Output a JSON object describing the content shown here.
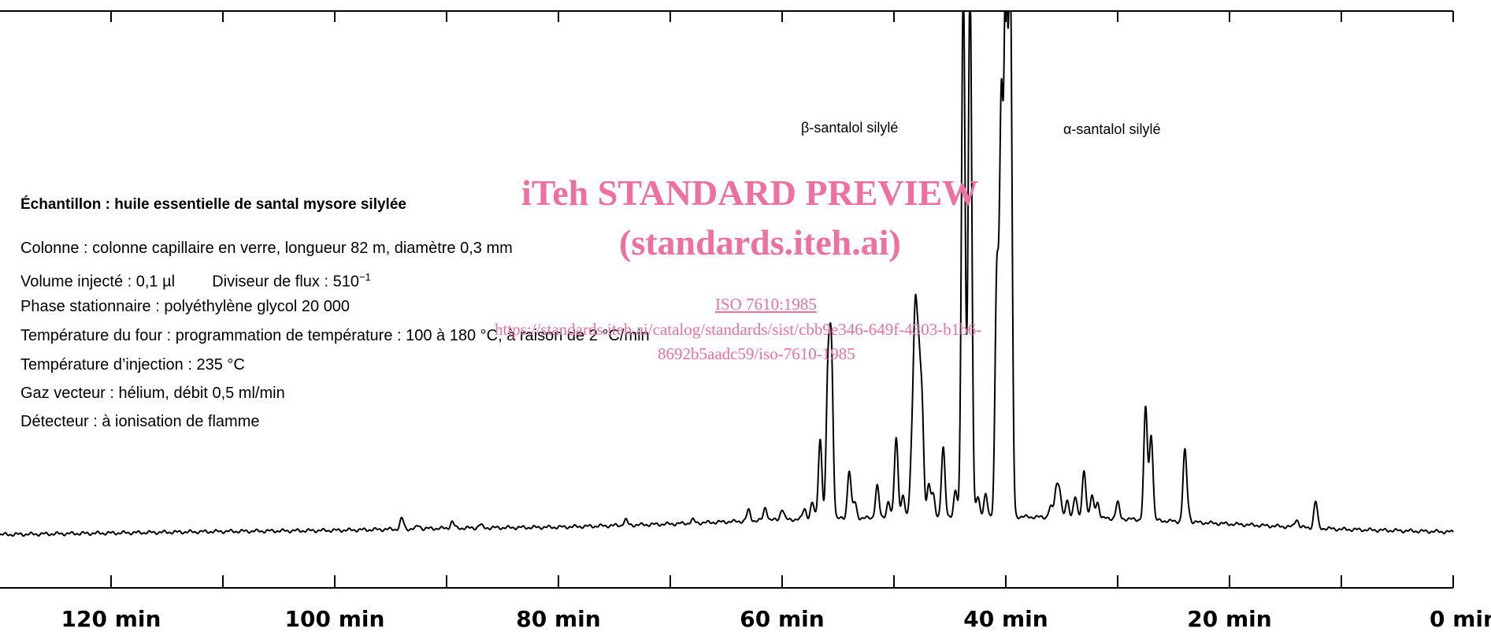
{
  "chart_data": {
    "type": "line",
    "x_axis": {
      "unit": "min",
      "reversed": true,
      "range": [
        0,
        130
      ],
      "tick_labels": [
        "120 min",
        "100 min",
        "80 min",
        "60 min",
        "40 min",
        "20 min",
        "0 min"
      ],
      "tick_values": [
        120,
        100,
        80,
        60,
        40,
        20,
        0
      ],
      "minor_ticks_every": 10
    },
    "series": [
      {
        "baseline": [
          [
            130,
            0.02
          ],
          [
            120,
            0.023
          ],
          [
            110,
            0.026
          ],
          [
            100,
            0.028
          ],
          [
            90,
            0.032
          ],
          [
            80,
            0.034
          ],
          [
            70,
            0.04
          ],
          [
            60,
            0.048
          ],
          [
            50,
            0.052
          ],
          [
            40,
            0.054
          ],
          [
            30,
            0.05
          ],
          [
            20,
            0.04
          ],
          [
            10,
            0.03
          ],
          [
            0,
            0.025
          ]
        ],
        "peaks": [
          [
            94.0,
            0.02
          ],
          [
            92.5,
            0.006
          ],
          [
            89.5,
            0.012
          ],
          [
            87.0,
            0.006
          ],
          [
            74.0,
            0.01
          ],
          [
            68.0,
            0.006
          ],
          [
            63.0,
            0.02
          ],
          [
            61.5,
            0.024
          ],
          [
            60.0,
            0.02
          ],
          [
            58.0,
            0.02
          ],
          [
            57.3,
            0.03
          ],
          [
            56.6,
            0.15
          ],
          [
            55.9,
            0.26
          ],
          [
            55.6,
            0.3
          ],
          [
            54.0,
            0.09
          ],
          [
            53.5,
            0.03
          ],
          [
            51.5,
            0.06
          ],
          [
            50.5,
            0.03
          ],
          [
            49.8,
            0.15
          ],
          [
            49.2,
            0.04
          ],
          [
            48.4,
            0.12
          ],
          [
            48.1,
            0.35
          ],
          [
            47.8,
            0.25
          ],
          [
            47.5,
            0.2
          ],
          [
            46.9,
            0.06
          ],
          [
            46.5,
            0.04
          ],
          [
            45.6,
            0.13
          ],
          [
            44.5,
            0.05
          ],
          [
            43.8,
            1.0
          ],
          [
            43.2,
            1.0
          ],
          [
            42.5,
            0.04
          ],
          [
            41.8,
            0.04
          ],
          [
            40.8,
            0.45
          ],
          [
            40.4,
            0.75
          ],
          [
            40.0,
            1.0
          ],
          [
            39.6,
            1.0
          ],
          [
            36.0,
            0.02
          ],
          [
            35.5,
            0.05
          ],
          [
            35.2,
            0.05
          ],
          [
            34.5,
            0.03
          ],
          [
            33.8,
            0.04
          ],
          [
            33.0,
            0.09
          ],
          [
            32.3,
            0.04
          ],
          [
            31.8,
            0.03
          ],
          [
            30.0,
            0.03
          ],
          [
            27.5,
            0.21
          ],
          [
            27.0,
            0.16
          ],
          [
            24.0,
            0.13
          ],
          [
            23.7,
            0.02
          ],
          [
            14.0,
            0.015
          ],
          [
            12.3,
            0.05
          ]
        ]
      }
    ],
    "annotations": [
      "β-santalol silylé",
      "α-santalol silylé"
    ],
    "grid": false,
    "title": "",
    "xlabel": "",
    "ylabel": ""
  },
  "peak_labels": {
    "beta": "β-santalol silylé",
    "alpha": "α-santalol silylé"
  },
  "conditions": {
    "sample": "Échantillon : huile essentielle de santal mysore silylée",
    "column": "Colonne : colonne capillaire en verre, longueur 82 m, diamètre 0,3 mm",
    "volume": "Volume injecté : 0,1 µl",
    "split_label": "Diviseur de flux : 510",
    "split_exp": "−1",
    "phase": "Phase stationnaire : polyéthylène glycol 20 000",
    "oven": "Température du four : programmation de température : 100 à 180 °C, à raison de 2 °C/min",
    "injection": "Température d’injection : 235 °C",
    "gas": "Gaz vecteur : hélium, débit 0,5 ml/min",
    "detector": "Détecteur : à ionisation de flamme"
  },
  "watermark": {
    "line1": "iTeh STANDARD PREVIEW",
    "line2": "(standards.iteh.ai)",
    "code": "ISO 7610:1985",
    "url1": "https://standards.iteh.ai/catalog/standards/sist/cbb9e346-649f-4303-b1b6-",
    "url2": "8692b5aadc59/iso-7610-1985",
    "color": "#f06fa0"
  }
}
